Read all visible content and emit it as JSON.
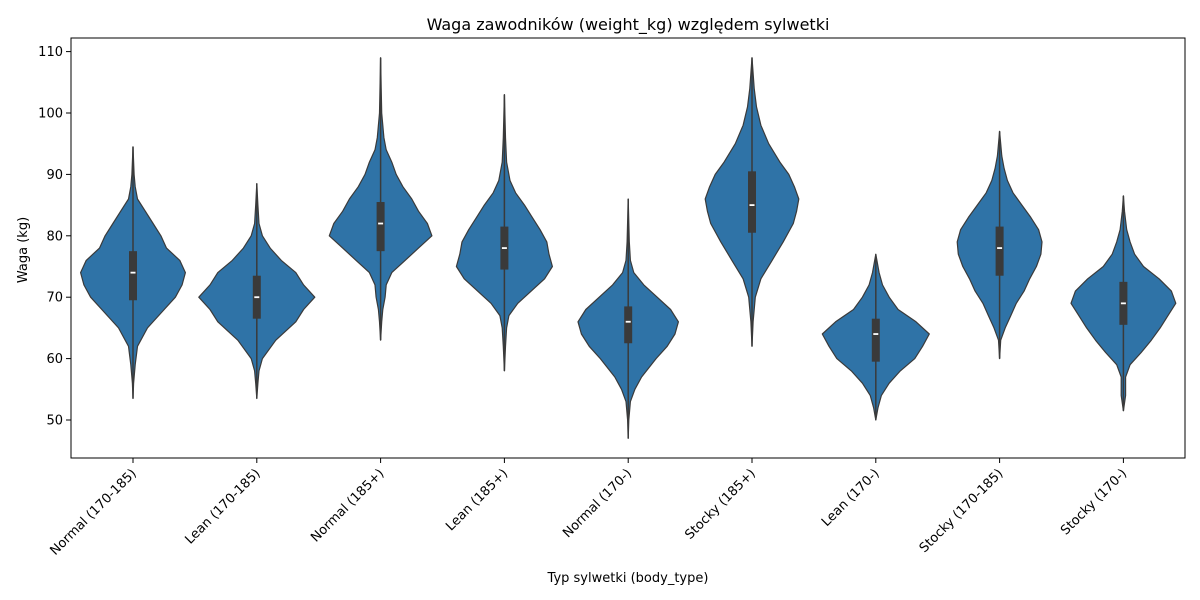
{
  "chart_data": {
    "type": "violin",
    "title": "Waga zawodników (weight_kg) względem sylwetki",
    "xlabel": "Typ sylwetki (body_type)",
    "ylabel": "Waga (kg)",
    "ylim": [
      44,
      112
    ],
    "yticks": [
      50,
      60,
      70,
      80,
      90,
      100,
      110
    ],
    "grid": false,
    "categories": [
      "Normal (170-185)",
      "Lean (170-185)",
      "Normal (185+)",
      "Lean (185+)",
      "Normal (170-)",
      "Stocky (185+)",
      "Lean (170-)",
      "Stocky (170-185)",
      "Stocky (170-)"
    ],
    "series": [
      {
        "color": "#2f73a7",
        "violins": [
          {
            "min": 53.5,
            "max": 94.5,
            "q1": 69.5,
            "median": 74,
            "q3": 77.5,
            "profile": [
              [
                53.5,
                0
              ],
              [
                56,
                0.5
              ],
              [
                59,
                2
              ],
              [
                62,
                4
              ],
              [
                65,
                13
              ],
              [
                68,
                28
              ],
              [
                70,
                38
              ],
              [
                72,
                44
              ],
              [
                74,
                47
              ],
              [
                76,
                42
              ],
              [
                78,
                30
              ],
              [
                80,
                25
              ],
              [
                82,
                18
              ],
              [
                84,
                11
              ],
              [
                86,
                4
              ],
              [
                88,
                2
              ],
              [
                90,
                1
              ],
              [
                94.5,
                0
              ]
            ]
          },
          {
            "min": 53.5,
            "max": 88.5,
            "q1": 66.5,
            "median": 70,
            "q3": 73.5,
            "profile": [
              [
                53.5,
                0
              ],
              [
                56,
                1
              ],
              [
                58,
                2
              ],
              [
                60,
                5
              ],
              [
                63,
                17
              ],
              [
                66,
                35
              ],
              [
                68,
                42
              ],
              [
                70,
                52
              ],
              [
                72,
                42
              ],
              [
                74,
                35
              ],
              [
                76,
                22
              ],
              [
                78,
                12
              ],
              [
                80,
                5
              ],
              [
                82,
                2
              ],
              [
                85,
                1
              ],
              [
                88.5,
                0
              ]
            ]
          },
          {
            "min": 63,
            "max": 109,
            "q1": 77.5,
            "median": 82,
            "q3": 85.5,
            "profile": [
              [
                63,
                0
              ],
              [
                66,
                1
              ],
              [
                68,
                2
              ],
              [
                70,
                4
              ],
              [
                72,
                5
              ],
              [
                74,
                10
              ],
              [
                76,
                22
              ],
              [
                78,
                34
              ],
              [
                80,
                46
              ],
              [
                82,
                42
              ],
              [
                84,
                34
              ],
              [
                86,
                28
              ],
              [
                88,
                20
              ],
              [
                90,
                14
              ],
              [
                92,
                10
              ],
              [
                94,
                5
              ],
              [
                96,
                3
              ],
              [
                100,
                1
              ],
              [
                104,
                0.5
              ],
              [
                109,
                0
              ]
            ]
          },
          {
            "min": 58,
            "max": 103,
            "q1": 74.5,
            "median": 78,
            "q3": 81.5,
            "profile": [
              [
                58,
                0
              ],
              [
                62,
                1
              ],
              [
                65,
                2
              ],
              [
                67,
                4
              ],
              [
                69,
                12
              ],
              [
                71,
                24
              ],
              [
                73,
                36
              ],
              [
                75,
                43
              ],
              [
                77,
                40
              ],
              [
                79,
                38
              ],
              [
                81,
                32
              ],
              [
                83,
                25
              ],
              [
                85,
                18
              ],
              [
                87,
                10
              ],
              [
                89,
                5
              ],
              [
                92,
                2
              ],
              [
                96,
                1
              ],
              [
                103,
                0
              ]
            ]
          },
          {
            "min": 47,
            "max": 86,
            "q1": 62.5,
            "median": 66,
            "q3": 68.5,
            "profile": [
              [
                47,
                0
              ],
              [
                50,
                0.5
              ],
              [
                53,
                2
              ],
              [
                55,
                6
              ],
              [
                57,
                12
              ],
              [
                60,
                25
              ],
              [
                62,
                35
              ],
              [
                64,
                42
              ],
              [
                66,
                45
              ],
              [
                68,
                38
              ],
              [
                70,
                26
              ],
              [
                72,
                14
              ],
              [
                74,
                5
              ],
              [
                76,
                2
              ],
              [
                79,
                1
              ],
              [
                86,
                0
              ]
            ]
          },
          {
            "min": 62,
            "max": 109,
            "q1": 80.5,
            "median": 85,
            "q3": 90.5,
            "profile": [
              [
                62,
                0
              ],
              [
                66,
                1
              ],
              [
                70,
                3
              ],
              [
                73,
                8
              ],
              [
                76,
                18
              ],
              [
                79,
                28
              ],
              [
                82,
                37
              ],
              [
                84,
                40
              ],
              [
                86,
                42
              ],
              [
                88,
                38
              ],
              [
                90,
                33
              ],
              [
                92,
                25
              ],
              [
                95,
                15
              ],
              [
                98,
                8
              ],
              [
                101,
                4
              ],
              [
                104,
                2
              ],
              [
                109,
                0
              ]
            ]
          },
          {
            "min": 50,
            "max": 77,
            "q1": 59.5,
            "median": 64,
            "q3": 66.5,
            "profile": [
              [
                50,
                0
              ],
              [
                52,
                2
              ],
              [
                54,
                5
              ],
              [
                56,
                12
              ],
              [
                58,
                22
              ],
              [
                60,
                35
              ],
              [
                62,
                42
              ],
              [
                64,
                48
              ],
              [
                66,
                36
              ],
              [
                68,
                20
              ],
              [
                70,
                12
              ],
              [
                72,
                6
              ],
              [
                74,
                3
              ],
              [
                77,
                0
              ]
            ]
          },
          {
            "min": 60,
            "max": 97,
            "q1": 73.5,
            "median": 78,
            "q3": 81.5,
            "profile": [
              [
                60,
                0
              ],
              [
                63,
                1
              ],
              [
                65,
                5
              ],
              [
                67,
                10
              ],
              [
                69,
                15
              ],
              [
                71,
                22
              ],
              [
                73,
                27
              ],
              [
                75,
                33
              ],
              [
                77,
                37
              ],
              [
                79,
                38
              ],
              [
                81,
                35
              ],
              [
                83,
                28
              ],
              [
                85,
                20
              ],
              [
                87,
                12
              ],
              [
                89,
                7
              ],
              [
                91,
                4
              ],
              [
                93,
                2
              ],
              [
                97,
                0
              ]
            ]
          },
          {
            "min": 51.5,
            "max": 86.5,
            "q1": 65.5,
            "median": 69,
            "q3": 72.5,
            "profile": [
              [
                51.5,
                0
              ],
              [
                54,
                2
              ],
              [
                57,
                2
              ],
              [
                59,
                6
              ],
              [
                61,
                16
              ],
              [
                63,
                25
              ],
              [
                65,
                33
              ],
              [
                67,
                40
              ],
              [
                69,
                47
              ],
              [
                71,
                43
              ],
              [
                73,
                32
              ],
              [
                75,
                18
              ],
              [
                77,
                10
              ],
              [
                79,
                6
              ],
              [
                81,
                3
              ],
              [
                84,
                1
              ],
              [
                86.5,
                0
              ]
            ]
          }
        ]
      }
    ]
  }
}
